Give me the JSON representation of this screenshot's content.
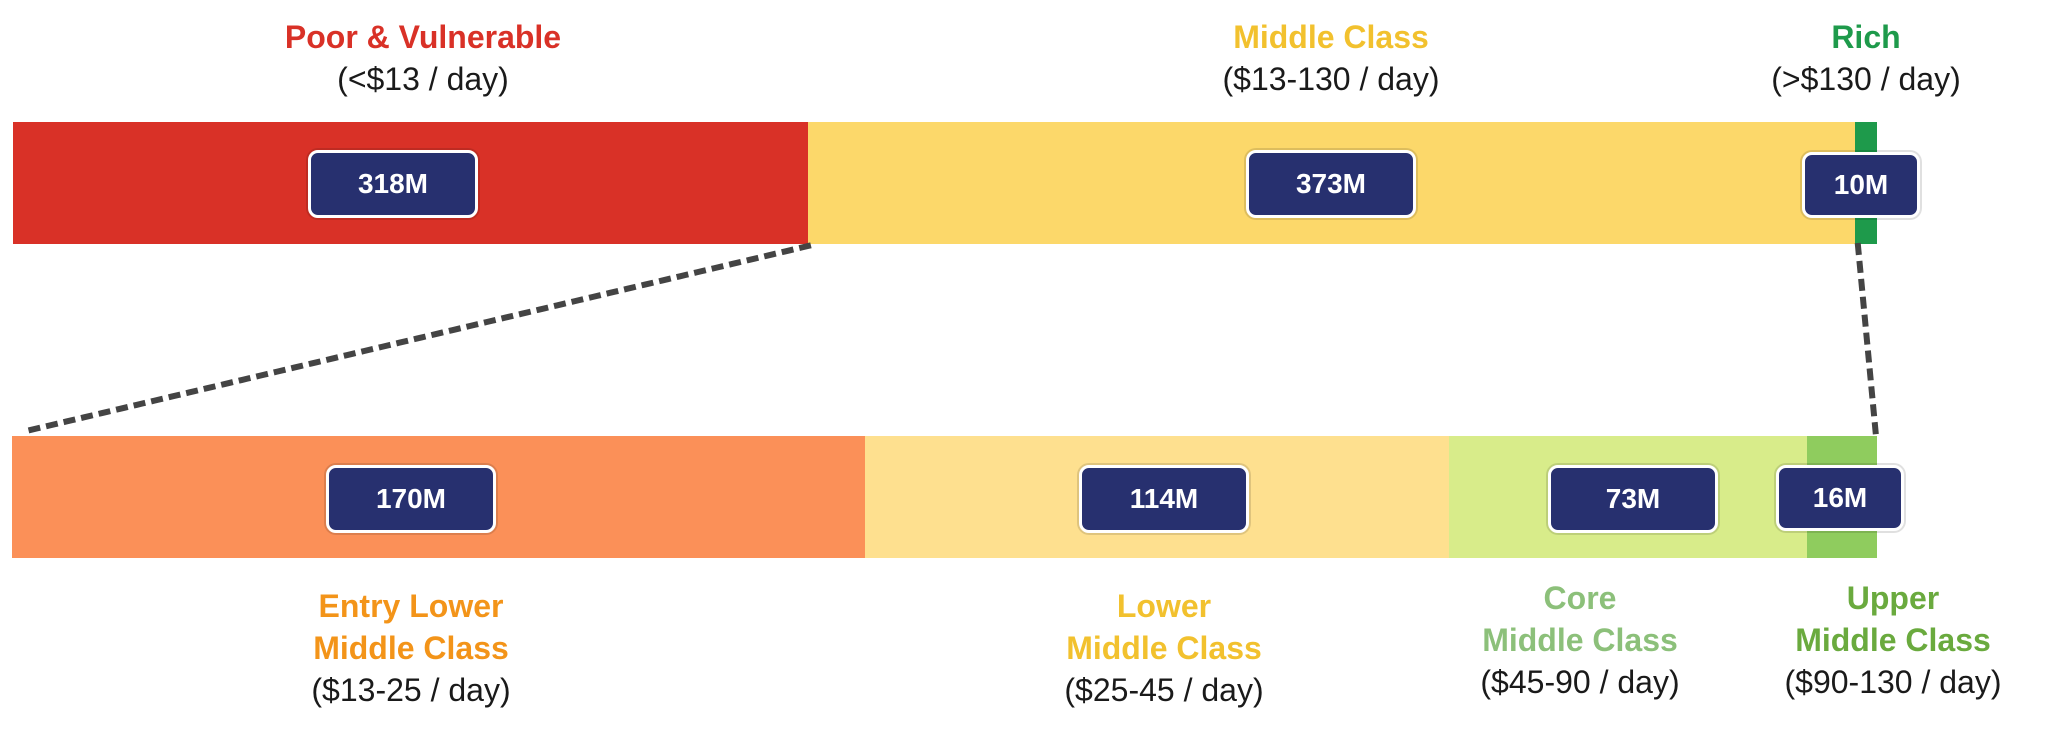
{
  "colors": {
    "poor": "#d93127",
    "middle": "#fcd86a",
    "rich": "#1e9a4b",
    "entry_lower": "#fb9058",
    "lower": "#fee08f",
    "core": "#d8ec8a",
    "upper": "#8fcc5e",
    "badge": "#27306f"
  },
  "top": {
    "poor": {
      "name": "Poor & Vulnerable",
      "range": "(<$13 / day)",
      "value": "318M",
      "name_color": "#d93127"
    },
    "middle": {
      "name": "Middle Class",
      "range": "($13-130 / day)",
      "value": "373M",
      "name_color": "#f2c12e"
    },
    "rich": {
      "name": "Rich",
      "range": "(>$130 / day)",
      "value": "10M",
      "name_color": "#1e9a4b"
    }
  },
  "bottom": {
    "entry_lower": {
      "name1": "Entry Lower",
      "name2": "Middle Class",
      "range": "($13-25 / day)",
      "value": "170M",
      "name_color": "#f39419"
    },
    "lower": {
      "name1": "Lower",
      "name2": "Middle Class",
      "range": "($25-45 / day)",
      "value": "114M",
      "name_color": "#f2c12e"
    },
    "core": {
      "name1": "Core",
      "name2": "Middle Class",
      "range": "($45-90 / day)",
      "value": "73M",
      "name_color": "#8cc07a"
    },
    "upper": {
      "name1": "Upper",
      "name2": "Middle Class",
      "range": "($90-130 / day)",
      "value": "16M",
      "name_color": "#6aaa3e"
    }
  }
}
